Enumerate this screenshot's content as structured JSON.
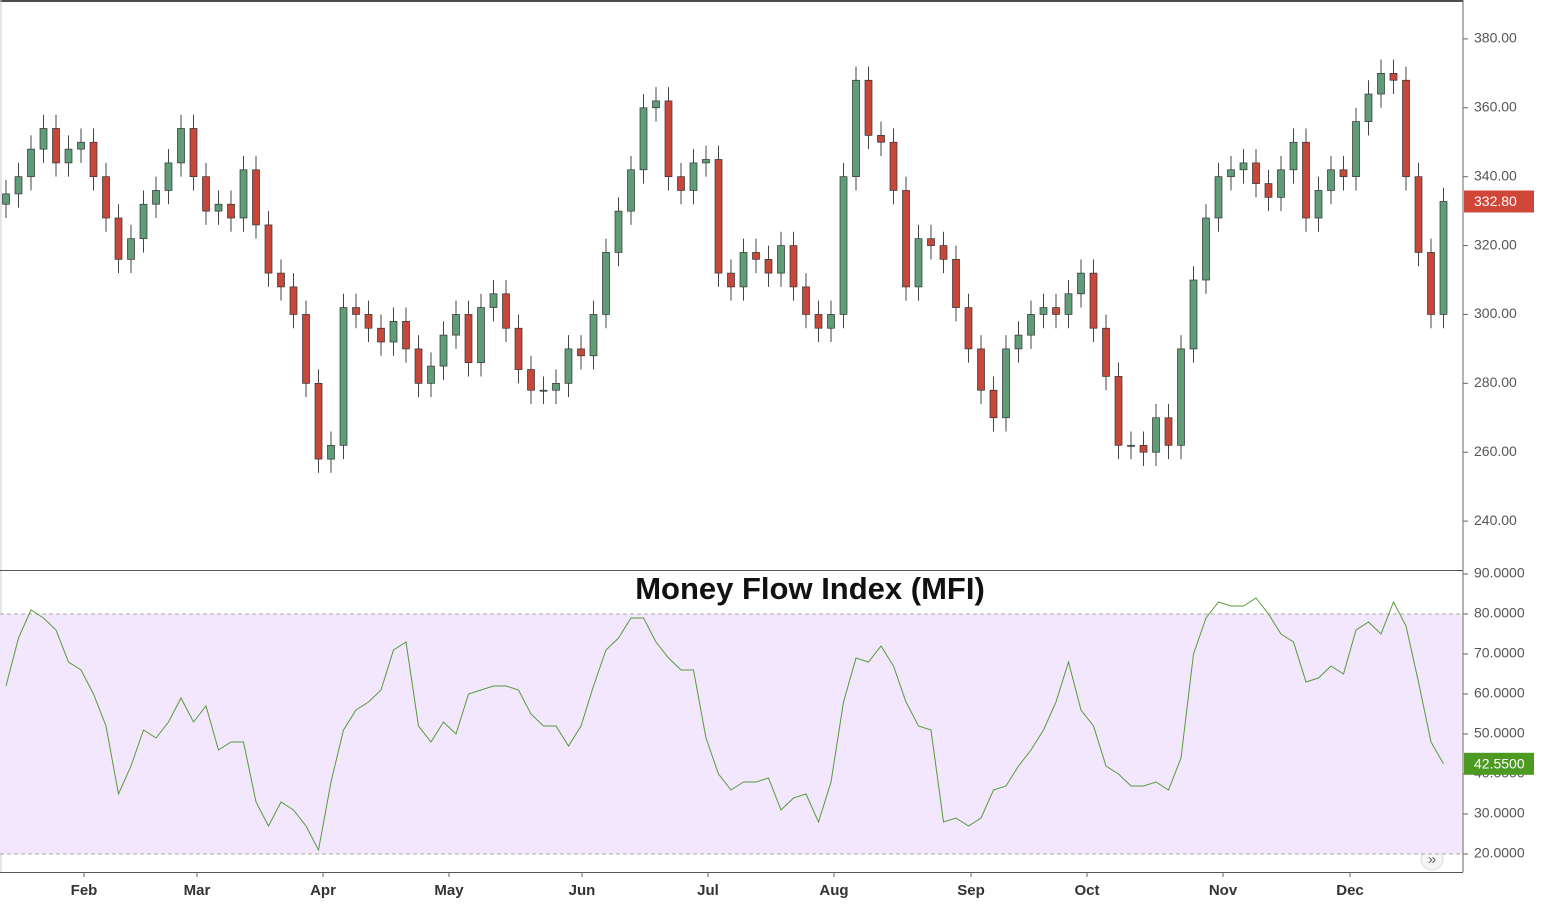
{
  "chart_data": [
    {
      "type": "candlestick",
      "xlim": [
        -0.48,
        116.48
      ],
      "ylim": [
        225.8,
        391.3
      ],
      "yticks": [
        {
          "value": 240,
          "label": "240.00"
        },
        {
          "value": 260,
          "label": "260.00"
        },
        {
          "value": 280,
          "label": "280.00"
        },
        {
          "value": 300,
          "label": "300.00"
        },
        {
          "value": 320,
          "label": "320.00"
        },
        {
          "value": 340,
          "label": "340.00"
        },
        {
          "value": 360,
          "label": "360.00"
        },
        {
          "value": 380,
          "label": "380.00"
        }
      ],
      "up_color": "#5f9d78",
      "down_color": "#c8473b",
      "current": {
        "value": 332.8,
        "label": "332.80"
      },
      "open": [
        332,
        335,
        340,
        348,
        354,
        344,
        348,
        350,
        340,
        328,
        316,
        322,
        332,
        336,
        344,
        354,
        340,
        330,
        332,
        328,
        342,
        326,
        312,
        308,
        300,
        280,
        258,
        262,
        302,
        300,
        296,
        292,
        298,
        290,
        280,
        285,
        294,
        300,
        286,
        302,
        306,
        296,
        284,
        278,
        278,
        280,
        290,
        288,
        300,
        318,
        330,
        342,
        360,
        362,
        340,
        336,
        344,
        345,
        312,
        308,
        318,
        316,
        312,
        320,
        308,
        300,
        296,
        300,
        340,
        368,
        352,
        350,
        336,
        308,
        322,
        320,
        316,
        302,
        290,
        278,
        270,
        290,
        294,
        300,
        302,
        300,
        306,
        312,
        296,
        282,
        262,
        262,
        260,
        270,
        262,
        290,
        310,
        328,
        340,
        342,
        344,
        338,
        334,
        342,
        350,
        328,
        336,
        342,
        340,
        356,
        364,
        370,
        368,
        340,
        318,
        300
      ],
      "high": [
        339,
        344,
        352,
        358,
        358,
        352,
        354,
        354,
        344,
        332,
        326,
        336,
        340,
        348,
        358,
        358,
        344,
        336,
        336,
        346,
        346,
        330,
        316,
        312,
        304,
        284,
        266,
        306,
        306,
        304,
        300,
        302,
        302,
        294,
        289,
        298,
        304,
        304,
        306,
        310,
        310,
        300,
        288,
        282,
        284,
        294,
        294,
        304,
        322,
        334,
        346,
        364,
        366,
        366,
        344,
        348,
        349,
        349,
        316,
        322,
        322,
        320,
        324,
        324,
        312,
        304,
        304,
        344,
        372,
        372,
        356,
        354,
        340,
        326,
        326,
        324,
        320,
        306,
        294,
        282,
        294,
        298,
        304,
        306,
        306,
        310,
        316,
        316,
        300,
        286,
        266,
        266,
        274,
        274,
        294,
        314,
        332,
        344,
        346,
        348,
        348,
        342,
        346,
        354,
        354,
        340,
        346,
        346,
        360,
        368,
        374,
        374,
        372,
        344,
        322,
        336.8
      ],
      "low": [
        328,
        331,
        336,
        344,
        340,
        340,
        344,
        336,
        324,
        312,
        312,
        318,
        328,
        332,
        340,
        336,
        326,
        326,
        324,
        324,
        322,
        308,
        304,
        296,
        276,
        254,
        254,
        258,
        296,
        292,
        288,
        288,
        286,
        276,
        276,
        281,
        290,
        282,
        282,
        298,
        292,
        280,
        274,
        274,
        274,
        276,
        284,
        284,
        296,
        314,
        326,
        338,
        356,
        336,
        332,
        332,
        340,
        308,
        304,
        304,
        312,
        308,
        308,
        304,
        296,
        292,
        292,
        296,
        336,
        348,
        346,
        332,
        304,
        304,
        316,
        312,
        298,
        286,
        274,
        266,
        266,
        286,
        290,
        296,
        296,
        296,
        302,
        292,
        278,
        258,
        258,
        256,
        256,
        258,
        258,
        286,
        306,
        324,
        336,
        338,
        334,
        330,
        330,
        338,
        324,
        324,
        332,
        336,
        336,
        352,
        360,
        364,
        336,
        314,
        296,
        296
      ],
      "close": [
        335,
        340,
        348,
        354,
        344,
        348,
        350,
        340,
        328,
        316,
        322,
        332,
        336,
        344,
        354,
        340,
        330,
        332,
        328,
        342,
        326,
        312,
        308,
        300,
        280,
        258,
        262,
        302,
        300,
        296,
        292,
        298,
        290,
        280,
        285,
        294,
        300,
        286,
        302,
        306,
        296,
        284,
        278,
        278,
        280,
        290,
        288,
        300,
        318,
        330,
        342,
        360,
        362,
        340,
        336,
        344,
        345,
        312,
        308,
        318,
        316,
        312,
        320,
        308,
        300,
        296,
        300,
        340,
        368,
        352,
        350,
        336,
        308,
        322,
        320,
        316,
        302,
        290,
        278,
        270,
        290,
        294,
        300,
        302,
        300,
        306,
        312,
        296,
        282,
        262,
        262,
        260,
        270,
        262,
        290,
        310,
        328,
        340,
        342,
        344,
        338,
        334,
        342,
        350,
        328,
        336,
        342,
        340,
        356,
        364,
        370,
        368,
        340,
        318,
        300,
        332.8
      ]
    },
    {
      "type": "line",
      "title": "Money Flow Index (MFI)",
      "xlim": [
        -0.48,
        116.48
      ],
      "ylim": [
        15.5,
        90.5
      ],
      "xticks": [
        {
          "value": 6.24,
          "label": "Feb"
        },
        {
          "value": 15.28,
          "label": "Mar"
        },
        {
          "value": 25.36,
          "label": "Apr"
        },
        {
          "value": 35.44,
          "label": "May"
        },
        {
          "value": 46.08,
          "label": "Jun"
        },
        {
          "value": 56.16,
          "label": "Jul"
        },
        {
          "value": 66.24,
          "label": "Aug"
        },
        {
          "value": 77.2,
          "label": "Sep"
        },
        {
          "value": 86.48,
          "label": "Oct"
        },
        {
          "value": 97.36,
          "label": "Nov"
        },
        {
          "value": 107.52,
          "label": "Dec"
        }
      ],
      "yticks": [
        {
          "value": 20,
          "label": "20.0000"
        },
        {
          "value": 30,
          "label": "30.0000"
        },
        {
          "value": 40,
          "label": "40.0000"
        },
        {
          "value": 50,
          "label": "50.0000"
        },
        {
          "value": 60,
          "label": "60.0000"
        },
        {
          "value": 70,
          "label": "70.0000"
        },
        {
          "value": 80,
          "label": "80.0000"
        },
        {
          "value": 90,
          "label": "90.0000"
        }
      ],
      "levels": [
        20,
        80
      ],
      "band_color": "#f2e7fc",
      "color": "#5a9a3a",
      "current": {
        "value": 42.55,
        "label": "42.5500"
      },
      "values": [
        62,
        74,
        81,
        79,
        76,
        68,
        66,
        60,
        52,
        35,
        42,
        51,
        49,
        53,
        59,
        53,
        57,
        46,
        48,
        48,
        33,
        27,
        33,
        31,
        27,
        21,
        38,
        51,
        56,
        58,
        61,
        71,
        73,
        52,
        48,
        53,
        50,
        60,
        61,
        62,
        62,
        61,
        55,
        52,
        52,
        47,
        52,
        62,
        71,
        74,
        79,
        79,
        73,
        69,
        66,
        66,
        49,
        40,
        36,
        38,
        38,
        39,
        31,
        34,
        35,
        28,
        38,
        58,
        69,
        68,
        72,
        67,
        58,
        52,
        51,
        28,
        29,
        27,
        29,
        36,
        37,
        42,
        46,
        51,
        58,
        68,
        56,
        52,
        42,
        40,
        37,
        37,
        38,
        36,
        44,
        70,
        79,
        83,
        82,
        82,
        84,
        80,
        75,
        73,
        63,
        64,
        67,
        65,
        76,
        78,
        75,
        83,
        77,
        63,
        48,
        42.55
      ]
    }
  ]
}
